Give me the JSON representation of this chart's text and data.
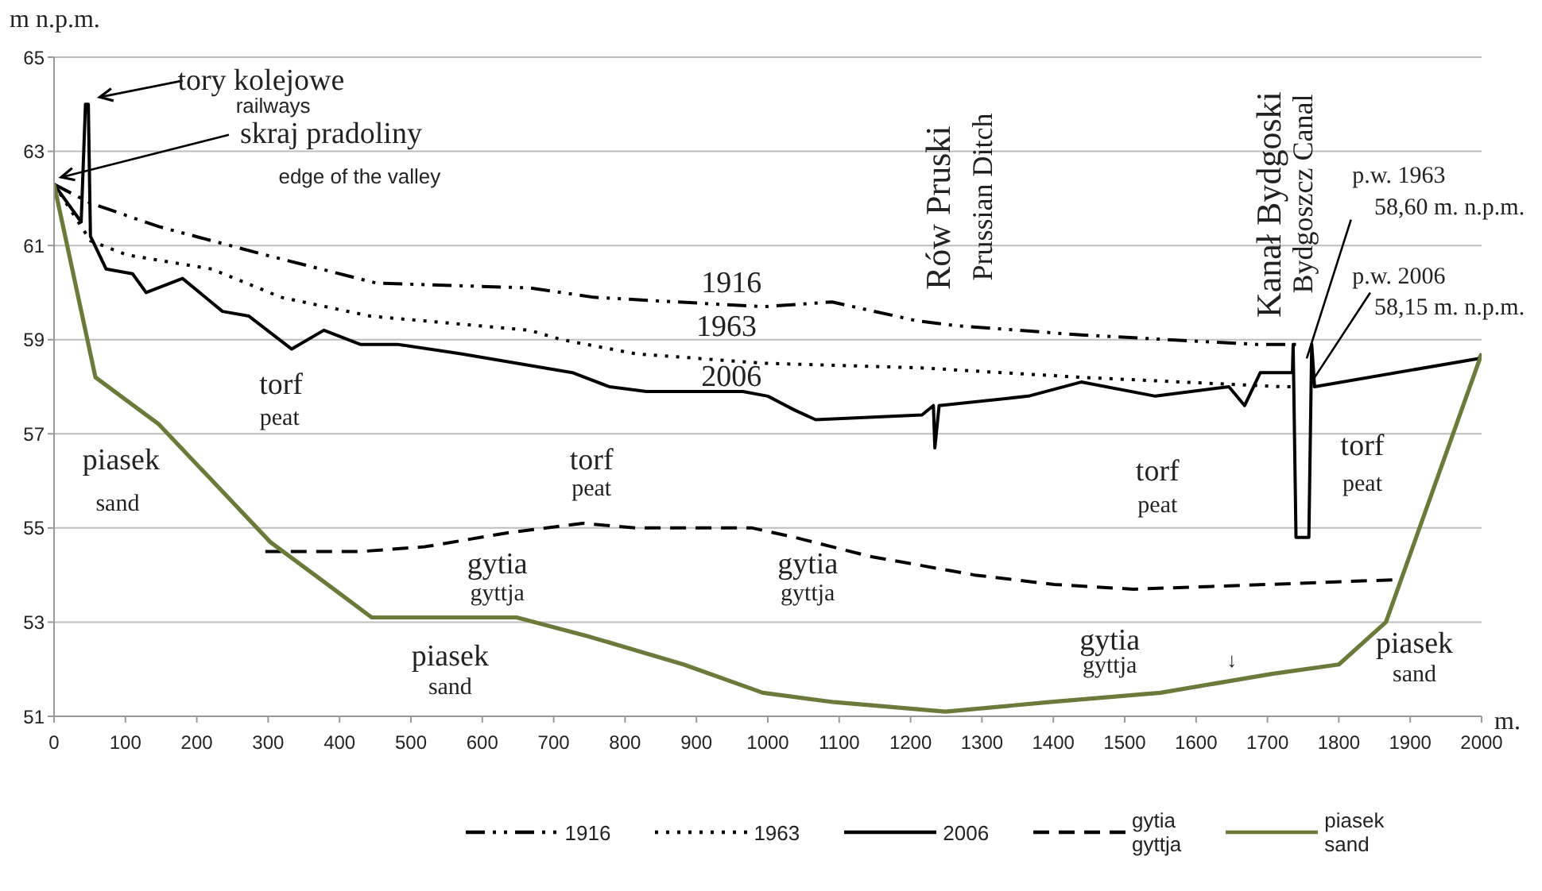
{
  "chart_data": {
    "type": "line",
    "ylabel": "m  n.p.m.",
    "xlabel": "m.",
    "xlim": [
      0,
      2000
    ],
    "xticks": [
      0,
      100,
      200,
      300,
      400,
      500,
      600,
      700,
      800,
      900,
      1000,
      1100,
      1200,
      1300,
      1400,
      1500,
      1600,
      1700,
      1800,
      1900,
      2000
    ],
    "ylim": [
      51,
      65
    ],
    "yticks": [
      51,
      53,
      55,
      57,
      59,
      61,
      63,
      65
    ],
    "grid": "y",
    "legend": "bottom",
    "marker": "none",
    "series": [
      {
        "name": "1916",
        "color": "#000000",
        "line_style": "dashdot",
        "x": [
          0,
          51,
          147,
          296,
          452,
          666,
          756,
          993,
          1090,
          1209,
          1261,
          1439,
          1684,
          1740
        ],
        "values": [
          62.3,
          61.9,
          61.4,
          60.8,
          60.2,
          60.1,
          59.9,
          59.7,
          59.8,
          59.4,
          59.3,
          59.1,
          58.9,
          58.9
        ]
      },
      {
        "name": "1963",
        "color": "#000000",
        "line_style": "dotted",
        "x": [
          0,
          51,
          102,
          221,
          318,
          443,
          666,
          711,
          815,
          993,
          1216,
          1439,
          1721,
          1740
        ],
        "values": [
          62.3,
          61.1,
          60.8,
          60.5,
          59.9,
          59.5,
          59.2,
          59.0,
          58.7,
          58.5,
          58.4,
          58.2,
          58.0,
          58.0
        ]
      },
      {
        "name": "2006",
        "color": "#000000",
        "line_style": "solid",
        "x": [
          0,
          38,
          44,
          48,
          51,
          73,
          110,
          129,
          180,
          236,
          273,
          333,
          378,
          429,
          481,
          570,
          726,
          778,
          830,
          949,
          965,
          1000,
          1038,
          1067,
          1216,
          1232,
          1234,
          1240,
          1365,
          1439,
          1543,
          1646,
          1668,
          1690,
          1735,
          1736,
          1740,
          1758,
          1762,
          1766,
          1996,
          2000
        ],
        "values": [
          62.3,
          61.5,
          64.0,
          64.0,
          61.2,
          60.5,
          60.4,
          60.0,
          60.3,
          59.6,
          59.5,
          58.8,
          59.2,
          58.9,
          58.9,
          58.7,
          58.3,
          58.0,
          57.9,
          57.9,
          57.9,
          57.8,
          57.5,
          57.3,
          57.4,
          57.6,
          56.7,
          57.6,
          57.8,
          58.1,
          57.8,
          58.0,
          57.6,
          58.3,
          58.3,
          58.9,
          54.8,
          54.8,
          58.9,
          58.0,
          58.6,
          58.7
        ]
      },
      {
        "name": "gytia\ngyttja",
        "color": "#000000",
        "line_style": "dashed",
        "x": [
          296,
          354,
          429,
          519,
          637,
          741,
          815,
          978,
          1038,
          1142,
          1290,
          1401,
          1512,
          1699,
          1877
        ],
        "values": [
          54.5,
          54.5,
          54.5,
          54.6,
          54.9,
          55.1,
          55.0,
          55.0,
          54.8,
          54.4,
          54.0,
          53.8,
          53.7,
          53.8,
          53.9
        ]
      },
      {
        "name": "piasek\nsand",
        "color": "#6b7a3a",
        "line_style": "solid",
        "x": [
          0,
          58,
          147,
          303,
          392,
          445,
          648,
          748,
          882,
          993,
          1093,
          1249,
          1394,
          1550,
          1706,
          1800,
          1866,
          2000
        ],
        "values": [
          62.3,
          58.2,
          57.2,
          54.7,
          53.7,
          53.1,
          53.1,
          52.7,
          52.1,
          51.5,
          51.3,
          51.1,
          51.3,
          51.5,
          51.9,
          52.1,
          53.0,
          58.7
        ]
      }
    ],
    "annotations": [
      "tory kolejowe",
      "railways",
      "skraj pradoliny",
      "edge of the valley",
      "1916",
      "1963",
      "2006",
      "torf",
      "peat",
      "piasek",
      "sand",
      "torf",
      "peat",
      "gytia",
      "gyttja",
      "piasek",
      "sand",
      "gytia",
      "gyttja",
      "torf",
      "peat",
      "gytia",
      "gyttja",
      "↓",
      "torf",
      "peat",
      "piasek",
      "sand",
      "Rów Pruski",
      "Prussian Ditch",
      "Kanał Bydgoski",
      "Bydgoszcz Canal",
      {
        "text": "p.w. 1963",
        "x": 1755,
        "y": 58.6
      },
      "58,60 m. n.p.m.",
      {
        "text": "p.w. 2006",
        "x": 1764,
        "y": 58.15
      },
      "58,15 m. n.p.m."
    ]
  }
}
